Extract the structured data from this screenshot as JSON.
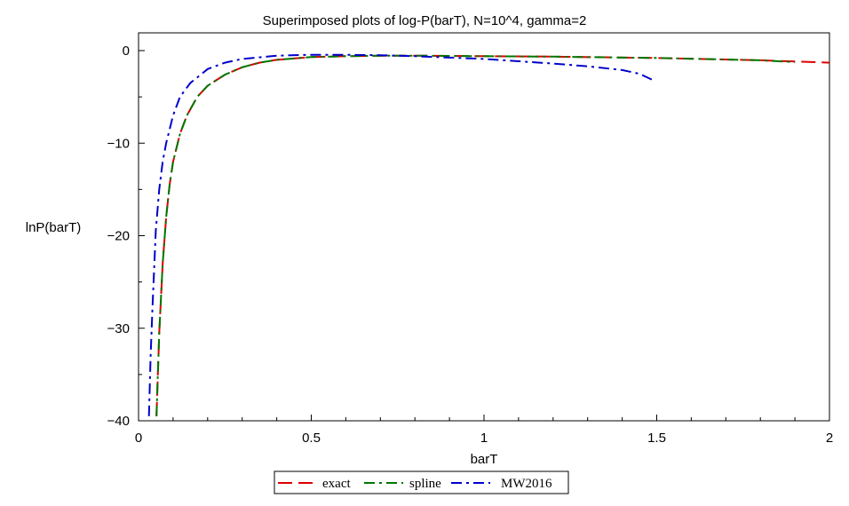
{
  "chart_data": {
    "type": "line",
    "title": "Superimposed plots of log-P(barT), N=10^4, gamma=2",
    "xlabel": "barT",
    "ylabel": "lnP(barT)",
    "xlim": [
      0,
      2
    ],
    "ylim": [
      -40,
      0
    ],
    "grid": false,
    "legend_position": "bottom-center",
    "x_ticks": [
      0,
      0.5,
      1,
      1.5,
      2
    ],
    "x_tick_labels": [
      "0",
      "0.5",
      "1",
      "1.5",
      "2"
    ],
    "y_ticks": [
      0,
      -10,
      -20,
      -30,
      -40
    ],
    "y_tick_labels": [
      "0",
      "−10",
      "−20",
      "−30",
      "−40"
    ],
    "series": [
      {
        "name": "exact",
        "color": "#dd0000",
        "dash": "long-dash",
        "x": [
          0.052,
          0.06,
          0.07,
          0.08,
          0.09,
          0.1,
          0.12,
          0.14,
          0.17,
          0.2,
          0.25,
          0.3,
          0.35,
          0.4,
          0.5,
          0.6,
          0.7,
          0.8,
          1.0,
          1.2,
          1.5,
          1.8,
          2.0
        ],
        "y": [
          -39.5,
          -30.5,
          -23.0,
          -18.0,
          -14.5,
          -12.0,
          -9.0,
          -7.0,
          -5.0,
          -3.8,
          -2.6,
          -1.8,
          -1.3,
          -1.0,
          -0.7,
          -0.6,
          -0.55,
          -0.55,
          -0.6,
          -0.65,
          -0.8,
          -1.05,
          -1.3
        ]
      },
      {
        "name": "spline",
        "color": "#007700",
        "dash": "dash-dot",
        "x": [
          0.052,
          0.06,
          0.07,
          0.08,
          0.09,
          0.1,
          0.12,
          0.14,
          0.17,
          0.2,
          0.25,
          0.3,
          0.35,
          0.4,
          0.5,
          0.6,
          0.7,
          0.8,
          1.0,
          1.2,
          1.5,
          1.8,
          1.9
        ],
        "y": [
          -39.5,
          -30.5,
          -23.0,
          -18.0,
          -14.5,
          -12.0,
          -9.0,
          -7.0,
          -5.0,
          -3.8,
          -2.6,
          -1.8,
          -1.3,
          -1.0,
          -0.7,
          -0.6,
          -0.55,
          -0.55,
          -0.6,
          -0.65,
          -0.8,
          -1.05,
          -1.25
        ]
      },
      {
        "name": "MW2016",
        "color": "#0000cc",
        "dash": "dash-dot",
        "x": [
          0.03,
          0.035,
          0.04,
          0.05,
          0.06,
          0.07,
          0.08,
          0.1,
          0.12,
          0.15,
          0.2,
          0.25,
          0.3,
          0.4,
          0.5,
          0.6,
          0.7,
          0.8,
          1.0,
          1.2,
          1.3,
          1.4,
          1.45,
          1.49
        ],
        "y": [
          -39.5,
          -33.0,
          -28.0,
          -19.5,
          -15.0,
          -12.0,
          -10.0,
          -7.0,
          -5.0,
          -3.5,
          -2.0,
          -1.3,
          -0.9,
          -0.55,
          -0.45,
          -0.45,
          -0.5,
          -0.6,
          -0.9,
          -1.4,
          -1.7,
          -2.1,
          -2.5,
          -3.2
        ]
      }
    ]
  }
}
